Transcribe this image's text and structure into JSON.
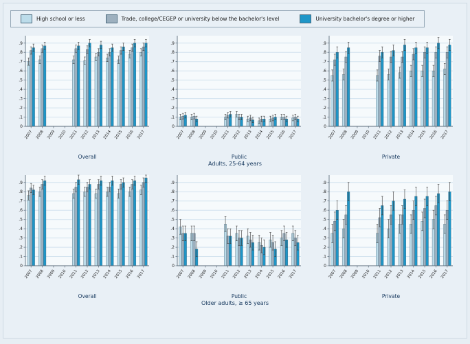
{
  "page": {
    "background": "#e7eef4"
  },
  "chart_data": {
    "type": "bar",
    "title": "",
    "xlabel": "",
    "ylabel": "",
    "grid": true,
    "legend_position": "top-left",
    "years": [
      2007,
      2008,
      2009,
      2010,
      2011,
      2012,
      2013,
      2014,
      2015,
      2016,
      2017
    ],
    "ylim": [
      0,
      0.98
    ],
    "yticks": [
      0,
      0.1,
      0.2,
      0.3,
      0.4,
      0.5,
      0.6,
      0.7,
      0.8,
      0.9
    ],
    "ytick_labels": [
      "0",
      ".1",
      ".2",
      ".3",
      ".4",
      ".5",
      ".6",
      ".7",
      ".8",
      ".9"
    ],
    "series": [
      {
        "name": "High school or less",
        "color": "#bcdcea"
      },
      {
        "name": "Trade, college/CEGEP or university below the bachelor's level",
        "color": "#9db0bf"
      },
      {
        "name": "University bachelor's degree or higher",
        "color": "#1e96c8"
      }
    ],
    "rows": [
      {
        "caption": "Adults, 25-64 years",
        "panels": [
          {
            "title": "Overall",
            "ci": 0.04,
            "values": [
              [
                0.7,
                0.72,
                null,
                null,
                0.72,
                0.71,
                0.75,
                0.74,
                0.72,
                0.78,
                0.8
              ],
              [
                0.82,
                0.84,
                null,
                null,
                0.84,
                0.83,
                0.8,
                0.8,
                0.82,
                0.85,
                0.86
              ],
              [
                0.85,
                0.87,
                null,
                null,
                0.87,
                0.9,
                0.88,
                0.85,
                0.86,
                0.9,
                0.9
              ]
            ]
          },
          {
            "title": "Public",
            "ci": 0.03,
            "values": [
              [
                0.1,
                0.1,
                null,
                null,
                0.1,
                0.13,
                0.08,
                0.06,
                0.08,
                0.1,
                0.09
              ],
              [
                0.11,
                0.11,
                null,
                null,
                0.12,
                0.1,
                0.09,
                0.08,
                0.09,
                0.1,
                0.1
              ],
              [
                0.12,
                0.08,
                null,
                null,
                0.13,
                0.1,
                0.07,
                0.08,
                0.1,
                0.08,
                0.08
              ]
            ]
          },
          {
            "title": "Private",
            "ci": 0.06,
            "values": [
              [
                0.55,
                0.56,
                null,
                null,
                0.55,
                0.56,
                0.58,
                0.6,
                0.6,
                0.6,
                0.62
              ],
              [
                0.72,
                0.75,
                null,
                null,
                0.76,
                0.75,
                0.75,
                0.78,
                0.8,
                0.8,
                0.8
              ],
              [
                0.8,
                0.85,
                null,
                null,
                0.8,
                0.82,
                0.88,
                0.85,
                0.85,
                0.9,
                0.88
              ]
            ]
          }
        ]
      },
      {
        "caption": "Older adults, ≥ 65 years",
        "panels": [
          {
            "title": "Overall",
            "ci": 0.05,
            "values": [
              [
                0.76,
                0.8,
                null,
                null,
                0.78,
                0.8,
                0.78,
                0.8,
                0.78,
                0.8,
                0.82
              ],
              [
                0.84,
                0.88,
                null,
                null,
                0.85,
                0.85,
                0.88,
                0.85,
                0.88,
                0.88,
                0.9
              ],
              [
                0.82,
                0.92,
                null,
                null,
                0.93,
                0.88,
                0.92,
                0.92,
                0.9,
                0.92,
                0.95
              ]
            ]
          },
          {
            "title": "Public",
            "ci": 0.08,
            "values": [
              [
                0.42,
                0.35,
                null,
                null,
                0.45,
                0.35,
                0.32,
                0.25,
                0.28,
                0.3,
                0.35
              ],
              [
                0.35,
                0.35,
                null,
                null,
                0.32,
                0.3,
                0.28,
                0.22,
                0.25,
                0.35,
                0.3
              ],
              [
                0.35,
                0.18,
                null,
                null,
                0.32,
                0.3,
                0.25,
                0.2,
                0.18,
                0.28,
                0.25
              ]
            ]
          },
          {
            "title": "Private",
            "ci": 0.1,
            "values": [
              [
                0.35,
                0.4,
                null,
                null,
                0.35,
                0.4,
                0.45,
                0.45,
                0.48,
                0.5,
                0.45
              ],
              [
                0.48,
                0.55,
                null,
                null,
                0.52,
                0.55,
                0.55,
                0.6,
                0.62,
                0.65,
                0.6
              ],
              [
                0.6,
                0.8,
                null,
                null,
                0.65,
                0.7,
                0.72,
                0.75,
                0.75,
                0.78,
                0.8
              ]
            ]
          }
        ]
      }
    ]
  }
}
